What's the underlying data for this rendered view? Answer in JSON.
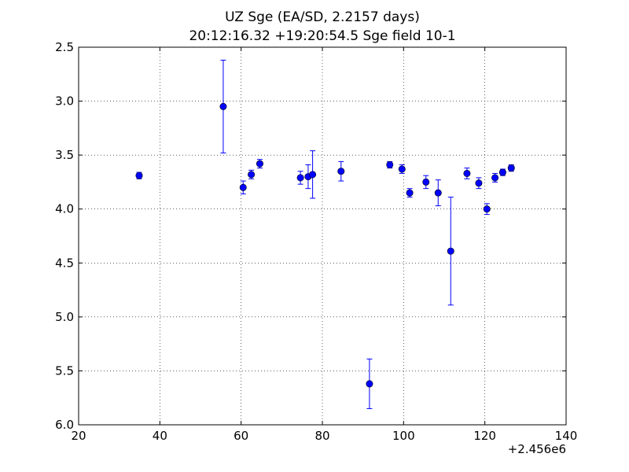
{
  "chart_data": {
    "type": "scatter",
    "title": "UZ Sge (EA/SD, 2.2157 days)",
    "subtitle": "20:12:16.32 +19:20:54.5 Sge field 10-1",
    "xlabel": "",
    "ylabel": "",
    "x_offset_label": "+2.456e6",
    "xlim": [
      20,
      140
    ],
    "ylim": [
      2.5,
      6.0
    ],
    "y_inverted": true,
    "grid": true,
    "x_ticks": [
      20,
      40,
      60,
      80,
      100,
      120,
      140
    ],
    "x_tick_labels": [
      "20",
      "40",
      "60",
      "80",
      "100",
      "120",
      "140"
    ],
    "y_ticks": [
      2.5,
      3.0,
      3.5,
      4.0,
      4.5,
      5.0,
      5.5,
      6.0
    ],
    "y_tick_labels": [
      "2.5",
      "3.0",
      "3.5",
      "4.0",
      "4.5",
      "5.0",
      "5.5",
      "6.0"
    ],
    "marker_color": "#0000ff",
    "points": [
      {
        "x": 34.9,
        "y": 3.69,
        "err": 0.03
      },
      {
        "x": 55.6,
        "y": 3.05,
        "err": 0.43
      },
      {
        "x": 60.5,
        "y": 3.8,
        "err": 0.06
      },
      {
        "x": 62.5,
        "y": 3.68,
        "err": 0.04
      },
      {
        "x": 64.6,
        "y": 3.58,
        "err": 0.04
      },
      {
        "x": 74.6,
        "y": 3.71,
        "err": 0.06
      },
      {
        "x": 76.5,
        "y": 3.7,
        "err": 0.11
      },
      {
        "x": 77.6,
        "y": 3.68,
        "err": 0.22
      },
      {
        "x": 84.6,
        "y": 3.65,
        "err": 0.09
      },
      {
        "x": 91.6,
        "y": 5.62,
        "err": 0.23
      },
      {
        "x": 96.6,
        "y": 3.59,
        "err": 0.03
      },
      {
        "x": 99.6,
        "y": 3.63,
        "err": 0.04
      },
      {
        "x": 101.5,
        "y": 3.85,
        "err": 0.04
      },
      {
        "x": 105.5,
        "y": 3.75,
        "err": 0.06
      },
      {
        "x": 108.5,
        "y": 3.85,
        "err": 0.12
      },
      {
        "x": 111.6,
        "y": 4.39,
        "err": 0.5
      },
      {
        "x": 115.6,
        "y": 3.67,
        "err": 0.05
      },
      {
        "x": 118.5,
        "y": 3.76,
        "err": 0.05
      },
      {
        "x": 120.5,
        "y": 4.0,
        "err": 0.05
      },
      {
        "x": 122.5,
        "y": 3.71,
        "err": 0.04
      },
      {
        "x": 124.4,
        "y": 3.66,
        "err": 0.03
      },
      {
        "x": 126.5,
        "y": 3.62,
        "err": 0.03
      }
    ]
  }
}
